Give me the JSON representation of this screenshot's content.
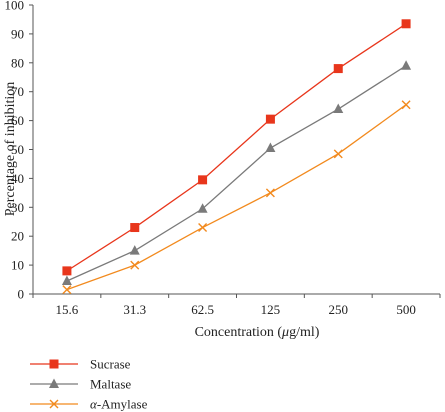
{
  "chart_data": {
    "type": "line",
    "title": "",
    "xlabel": "Concentration (μg/ml)",
    "xlabel_parts": [
      "Concentration (",
      "μ",
      "g/ml)"
    ],
    "ylabel": "Percentage of inhibition",
    "categories": [
      "15.6",
      "31.3",
      "62.5",
      "125",
      "250",
      "500"
    ],
    "ylim": [
      0,
      100
    ],
    "yticks": [
      0,
      10,
      20,
      30,
      40,
      50,
      60,
      70,
      80,
      90,
      100
    ],
    "grid": false,
    "legend_position": "bottom-left",
    "series": [
      {
        "name": "Sucrase",
        "values": [
          8,
          23,
          39.5,
          60.5,
          78,
          93.5
        ],
        "color": "#e8361c",
        "marker": "square"
      },
      {
        "name": "Maltase",
        "values": [
          4.5,
          15,
          29.5,
          50.5,
          64,
          79
        ],
        "color": "#7a7a7a",
        "marker": "triangle"
      },
      {
        "name": "α-Amylase",
        "name_parts": [
          "α",
          "-Amylase"
        ],
        "values": [
          1.5,
          10,
          23,
          35,
          48.5,
          65.5
        ],
        "color": "#f28a1e",
        "marker": "x"
      }
    ]
  }
}
